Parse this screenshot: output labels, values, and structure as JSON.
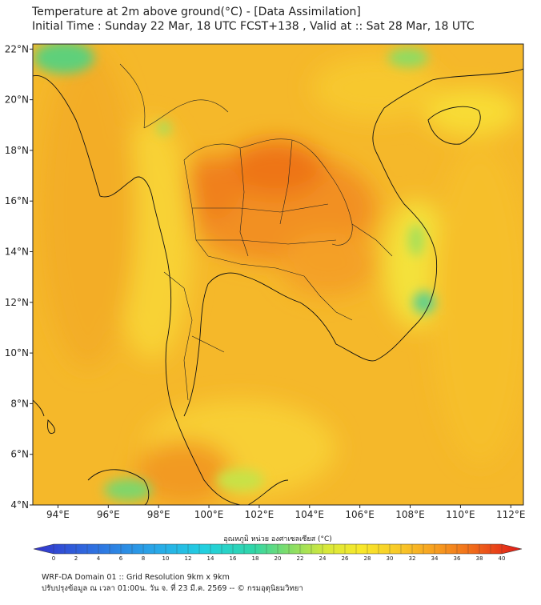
{
  "title": {
    "line1": "Temperature at 2m above ground(°C) - [Data Assimilation]",
    "line2": "Initial Time : Sunday 22 Mar, 18 UTC FCST+138 , Valid at :: Sat 28 Mar, 18 UTC"
  },
  "axes": {
    "lat_labels": [
      "22°N",
      "20°N",
      "18°N",
      "16°N",
      "14°N",
      "12°N",
      "10°N",
      "8°N",
      "6°N",
      "4°N"
    ],
    "lat_values": [
      22,
      20,
      18,
      16,
      14,
      12,
      10,
      8,
      6,
      4
    ],
    "lon_labels": [
      "94°E",
      "96°E",
      "98°E",
      "100°E",
      "102°E",
      "104°E",
      "106°E",
      "108°E",
      "110°E",
      "112°E"
    ],
    "lon_values": [
      94,
      96,
      98,
      100,
      102,
      104,
      106,
      108,
      110,
      112
    ],
    "lon_range": [
      93,
      112.5
    ],
    "lat_range": [
      4,
      22.2
    ]
  },
  "colorbar": {
    "label": "อุณหภูมิ หน่วย องศาเซลเซียส (°C)",
    "ticks": [
      "0",
      "2",
      "4",
      "6",
      "8",
      "10",
      "12",
      "14",
      "16",
      "18",
      "20",
      "22",
      "24",
      "26",
      "28",
      "30",
      "32",
      "34",
      "36",
      "38",
      "40"
    ],
    "min": 0,
    "max": 40
  },
  "footer": {
    "line1": "WRF-DA Domain 01 :: Grid Resolution 9km x 9km",
    "line2": "ปรับปรุงข้อมูล ณ เวลา 01:00น. วัน จ. ที่ 23 มี.ค. 2569 -- © กรมอุตุนิยมวิทยา"
  },
  "colors": {
    "base_field": "#f5b82a",
    "hot": "#f07a1a",
    "cool": "#7fd66a",
    "coast": "#111111"
  }
}
